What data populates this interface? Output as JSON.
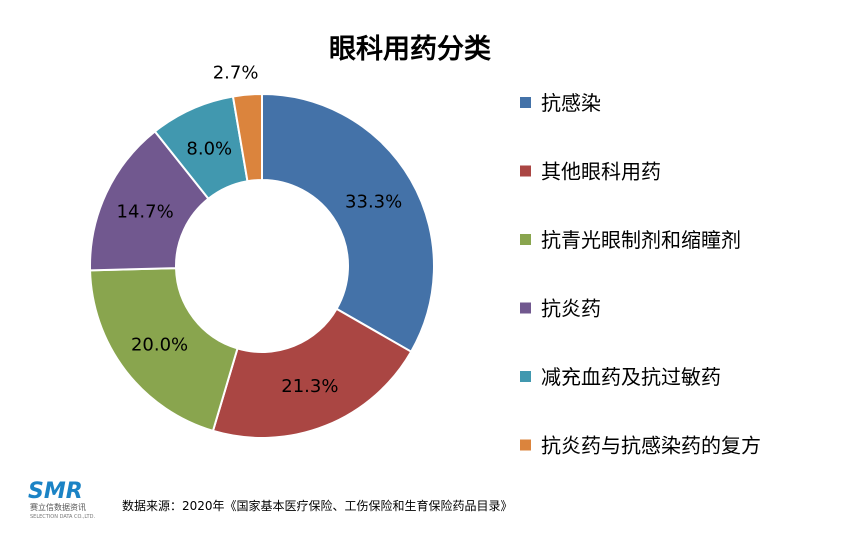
{
  "chart_data": {
    "type": "pie",
    "title": "眼科用药分类",
    "donut": true,
    "legend_position": "right",
    "categories": [
      "抗感染",
      "其他眼科用药",
      "抗青光眼制剂和缩瞳剂",
      "抗炎药",
      "减充血药及抗过敏药",
      "抗炎药与抗感染药的复方"
    ],
    "values": [
      33.3,
      21.3,
      20.0,
      14.7,
      8.0,
      2.7
    ],
    "labels": [
      "33.3%",
      "21.3%",
      "20.0%",
      "14.7%",
      "8.0%",
      "2.7%"
    ],
    "colors": [
      "#4472a8",
      "#aa4643",
      "#89a54e",
      "#71588f",
      "#4198af",
      "#db843d"
    ]
  },
  "source_text": "数据来源：2020年《国家基本医疗保险、工伤保险和生育保险药品目录》",
  "logo": {
    "text": "SMR",
    "cn": "赛立信数据资讯",
    "en": "SELECTION DATA CO.,LTD."
  }
}
